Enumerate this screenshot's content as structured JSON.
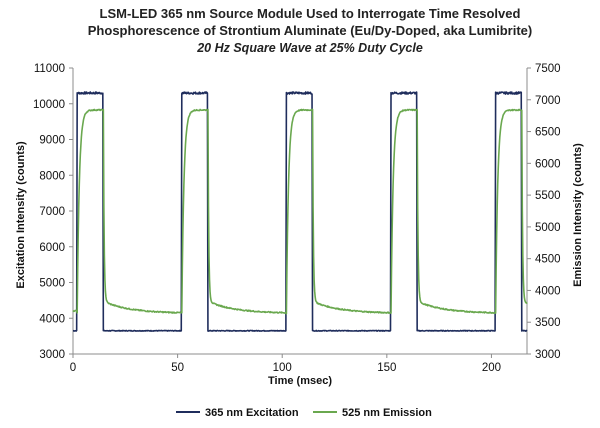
{
  "chart_data": {
    "type": "line",
    "title_lines": [
      "LSM-LED 365 nm Source Module Used to Interrogate Time Resolved",
      "Phosphorescence of Strontium Aluminate (Eu/Dy-Doped, aka Lumibrite)"
    ],
    "subtitle": "20 Hz Square Wave at 25% Duty Cycle",
    "xlabel": "Time (msec)",
    "ylabel_left": "Excitation Intensity (counts)",
    "ylabel_right": "Emission Intensity (counts)",
    "xlim": [
      0,
      217
    ],
    "ylim_left": [
      3000,
      11000
    ],
    "ylim_right": [
      3000,
      7500
    ],
    "x_ticks": [
      0,
      50,
      100,
      150,
      200
    ],
    "y_ticks_left": [
      3000,
      4000,
      5000,
      6000,
      7000,
      8000,
      9000,
      10000,
      11000
    ],
    "y_ticks_right": [
      3000,
      3500,
      4000,
      4500,
      5000,
      5500,
      6000,
      6500,
      7000,
      7500
    ],
    "grid": false,
    "legend_position": "bottom",
    "period_ms": 50,
    "on_duration_ms": 12.5,
    "pulse_starts_ms": [
      2,
      52,
      102,
      152,
      202
    ],
    "series": [
      {
        "name": "365 nm Excitation",
        "axis": "left",
        "color": "#1f2d5c",
        "low": 3650,
        "high": 10300
      },
      {
        "name": "525 nm Emission",
        "axis": "right",
        "color": "#6aa84f",
        "baseline": 3640,
        "peak": 6840,
        "tail_start": 3830,
        "tail_time_constant_ms": 2.5,
        "rise_time_constant_ms": 1.0
      }
    ]
  }
}
